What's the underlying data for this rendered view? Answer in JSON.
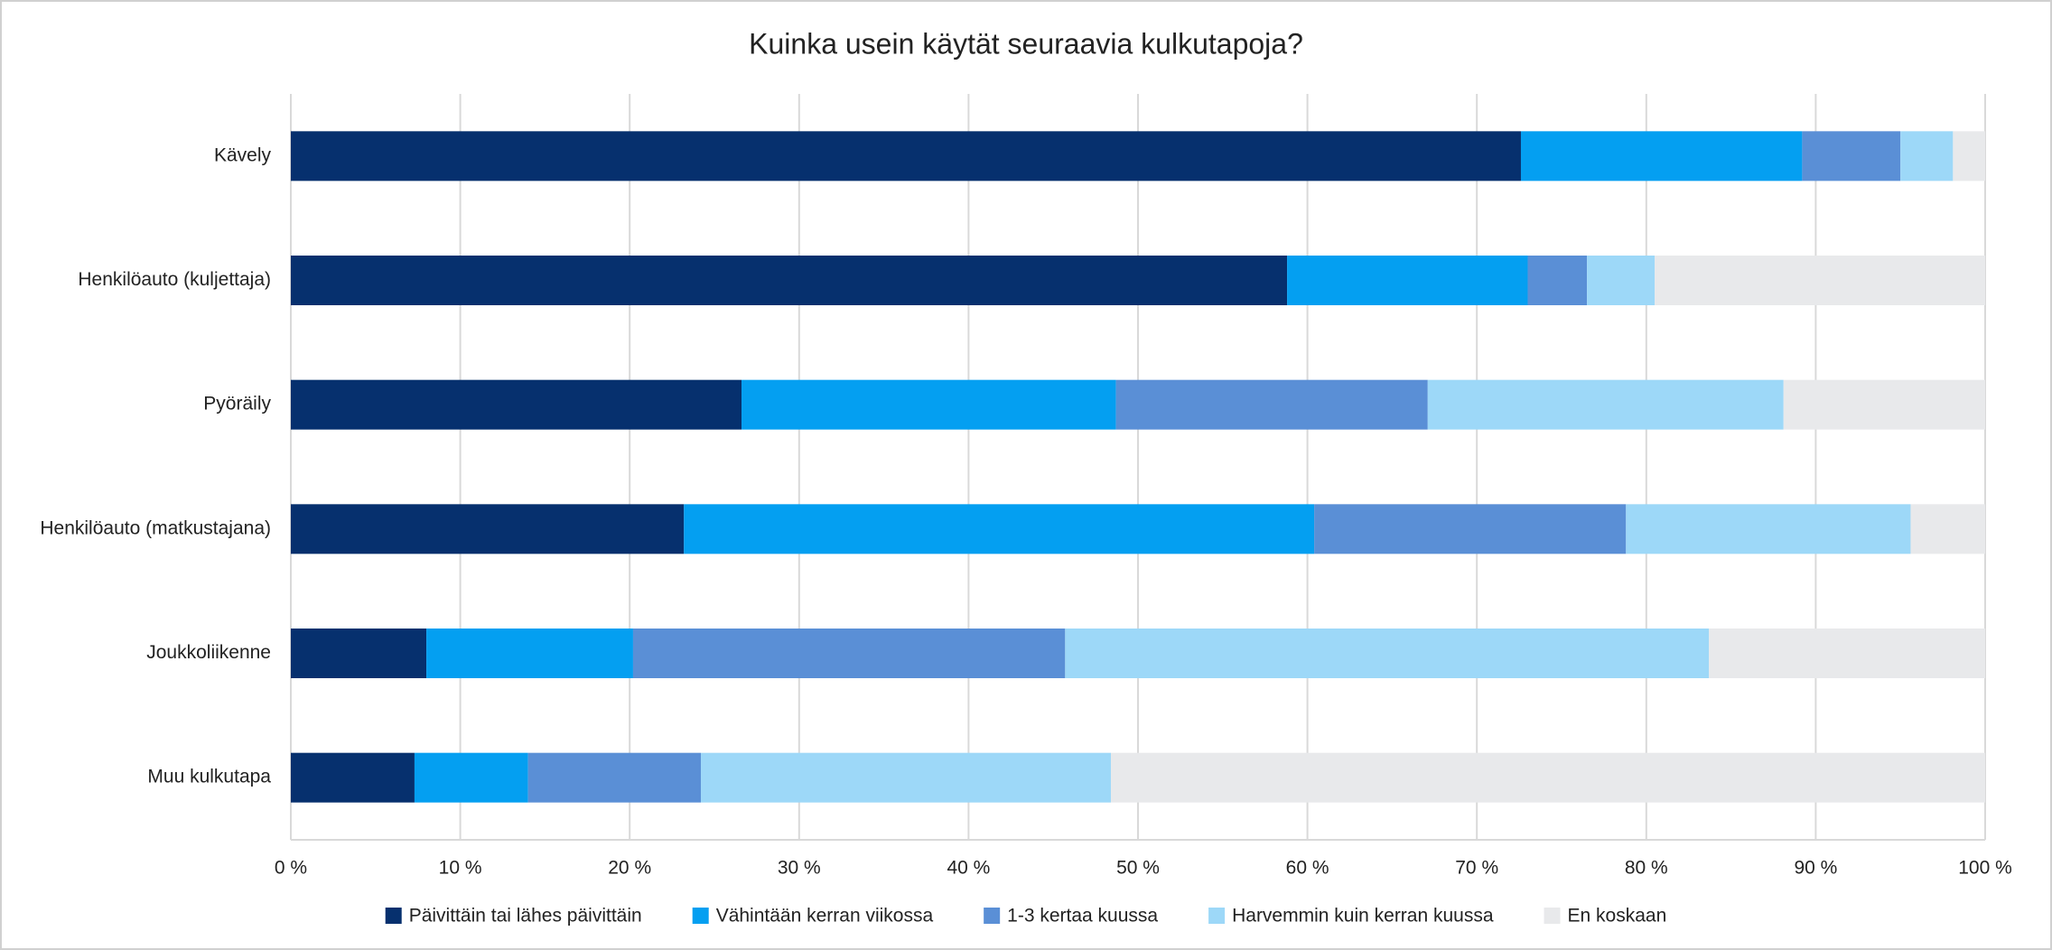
{
  "chart_data": {
    "type": "stacked-bar-horizontal",
    "title": "Kuinka usein käytät seuraavia kulkutapoja?",
    "categories": [
      "Kävely",
      "Henkilöauto (kuljettaja)",
      "Pyöräily",
      "Henkilöauto (matkustajana)",
      "Joukkoliikenne",
      "Muu kulkutapa"
    ],
    "series": [
      {
        "name": "Päivittäin tai lähes päivittäin",
        "color": "#06306e",
        "values": [
          72.6,
          58.8,
          26.6,
          23.2,
          8.0,
          7.3
        ]
      },
      {
        "name": "Vähintään kerran viikossa",
        "color": "#049ff1",
        "values": [
          16.6,
          14.2,
          22.1,
          37.2,
          12.2,
          6.7
        ]
      },
      {
        "name": "1-3 kertaa kuussa",
        "color": "#5a8fd6",
        "values": [
          5.8,
          3.5,
          18.4,
          18.4,
          25.5,
          10.2
        ]
      },
      {
        "name": "Harvemmin kuin kerran kuussa",
        "color": "#9dd8f8",
        "values": [
          3.1,
          4.0,
          21.0,
          16.8,
          38.0,
          24.2
        ]
      },
      {
        "name": "En koskaan",
        "color": "#e8e9eb",
        "values": [
          1.9,
          19.5,
          11.9,
          4.4,
          16.3,
          51.6
        ]
      }
    ],
    "xlim": [
      0,
      100
    ],
    "xticks": [
      {
        "value": 0,
        "label": "0 %"
      },
      {
        "value": 10,
        "label": "10 %"
      },
      {
        "value": 20,
        "label": "20 %"
      },
      {
        "value": 30,
        "label": "30 %"
      },
      {
        "value": 40,
        "label": "40 %"
      },
      {
        "value": 50,
        "label": "50 %"
      },
      {
        "value": 60,
        "label": "60 %"
      },
      {
        "value": 70,
        "label": "70 %"
      },
      {
        "value": 80,
        "label": "80 %"
      },
      {
        "value": 90,
        "label": "90 %"
      },
      {
        "value": 100,
        "label": "100 %"
      }
    ],
    "grid": true,
    "legend": "bottom"
  }
}
